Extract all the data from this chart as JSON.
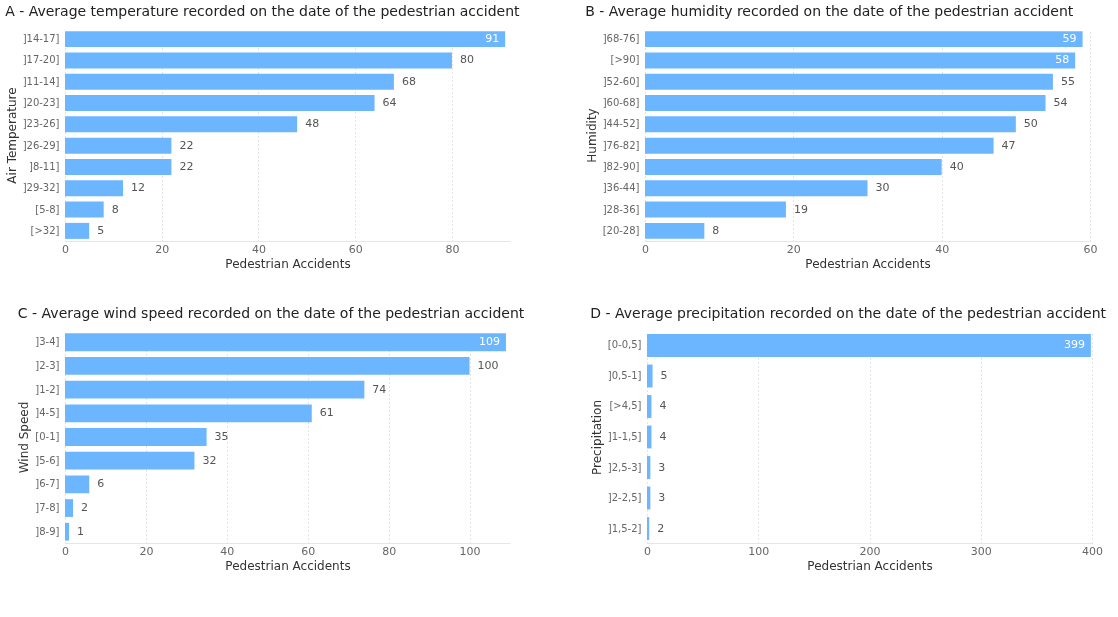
{
  "chart_data": [
    {
      "type": "bar",
      "orientation": "horizontal",
      "title": "A - Average temperature recorded on the date of the pedestrian accident",
      "xlabel": "Pedestrian Accidents",
      "ylabel": "Air Temperature",
      "categories": [
        "]14-17]",
        "]17-20]",
        "]11-14]",
        "]20-23]",
        "]23-26]",
        "]26-29]",
        "]8-11]",
        "]29-32]",
        "[5-8]",
        "[>32]"
      ],
      "values": [
        91,
        80,
        68,
        64,
        48,
        22,
        22,
        12,
        8,
        5
      ],
      "color": "#6cb6ff",
      "xlim": [
        0,
        92
      ],
      "xticks": [
        0,
        20,
        40,
        60,
        80
      ],
      "grid": "x",
      "data_labels": true
    },
    {
      "type": "bar",
      "orientation": "horizontal",
      "title": "B - Average humidity recorded on the date of the pedestrian accident",
      "xlabel": "Pedestrian Accidents",
      "ylabel": "Humidity",
      "categories": [
        "]68-76]",
        "[>90]",
        "]52-60]",
        "]60-68]",
        "]44-52]",
        "]76-82]",
        "]82-90]",
        "]36-44]",
        "]28-36]",
        "[20-28]"
      ],
      "values": [
        59,
        58,
        55,
        54,
        50,
        47,
        40,
        30,
        19,
        8
      ],
      "color": "#6cb6ff",
      "xlim": [
        0,
        60
      ],
      "xticks": [
        0,
        20,
        40,
        60
      ],
      "grid": "x",
      "data_labels": true
    },
    {
      "type": "bar",
      "orientation": "horizontal",
      "title": "C - Average wind speed recorded on the date of the pedestrian accident",
      "xlabel": "Pedestrian Accidents",
      "ylabel": "Wind Speed",
      "categories": [
        "]3-4]",
        "]2-3]",
        "]1-2]",
        "]4-5]",
        "[0-1]",
        "]5-6]",
        "]6-7]",
        "]7-8]",
        "]8-9]"
      ],
      "values": [
        109,
        100,
        74,
        61,
        35,
        32,
        6,
        2,
        1
      ],
      "color": "#6cb6ff",
      "xlim": [
        0,
        110
      ],
      "xticks": [
        0,
        20,
        40,
        60,
        80,
        100
      ],
      "grid": "x",
      "data_labels": true
    },
    {
      "type": "bar",
      "orientation": "horizontal",
      "title": "D - Average precipitation recorded on the date of the pedestrian accident",
      "xlabel": "Pedestrian Accidents",
      "ylabel": "Precipitation",
      "categories": [
        "[0-0,5]",
        "]0,5-1]",
        "[>4,5]",
        "]1-1,5]",
        "]2,5-3]",
        "]2-2,5]",
        "]1,5-2]"
      ],
      "values": [
        399,
        5,
        4,
        4,
        3,
        3,
        2
      ],
      "color": "#6cb6ff",
      "xlim": [
        0,
        400
      ],
      "xticks": [
        0,
        100,
        200,
        300,
        400
      ],
      "grid": "x",
      "data_labels": true
    }
  ]
}
